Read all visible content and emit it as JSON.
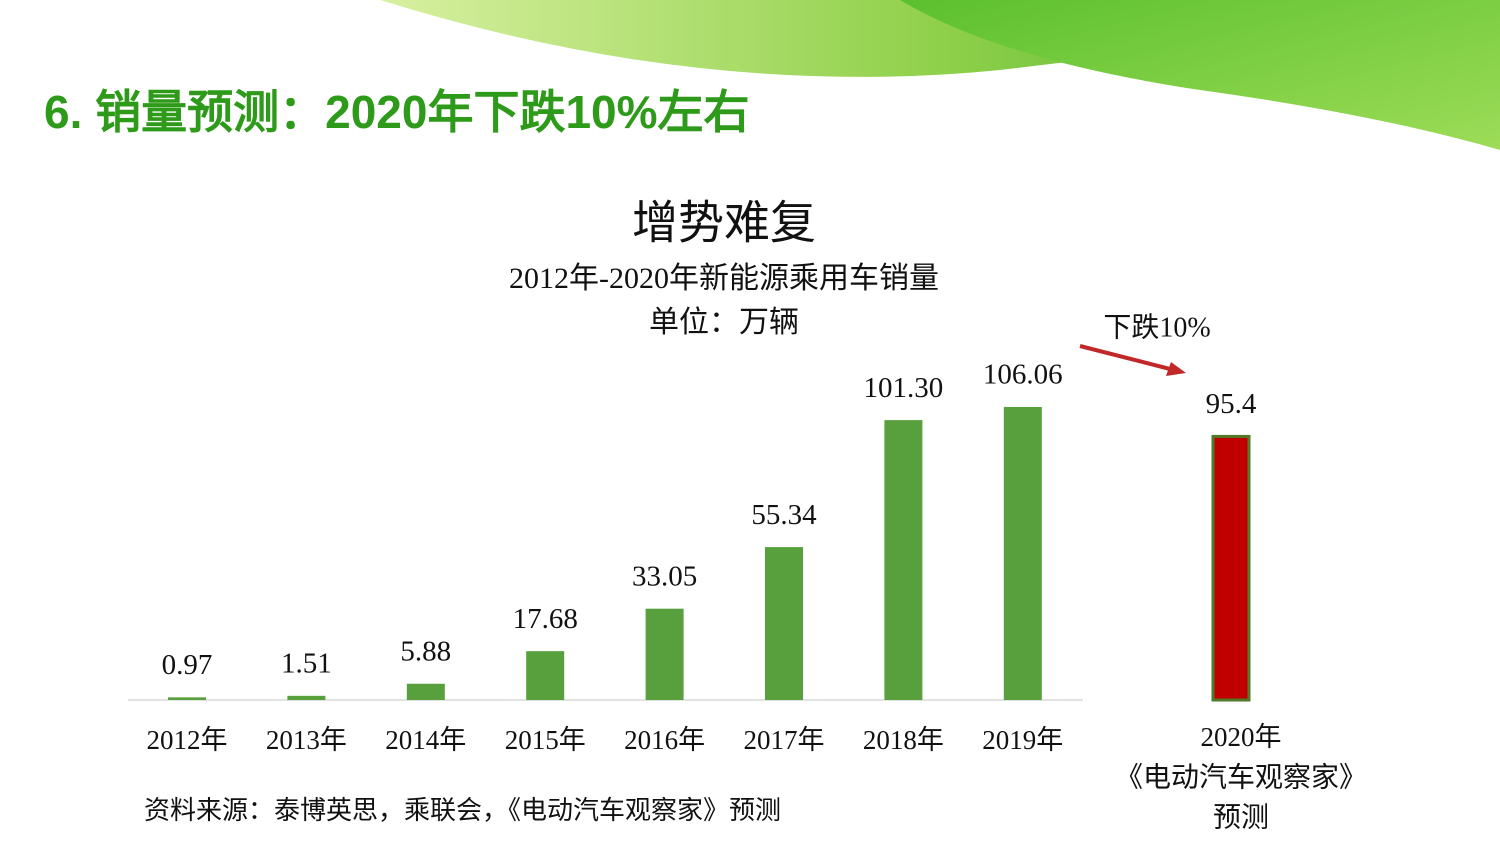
{
  "header": {
    "title": "6. 销量预测：2020年下跌10%左右"
  },
  "chart_data": {
    "type": "bar",
    "title": "增势难复",
    "subtitle": "2012年-2020年新能源乘用车销量",
    "unit": "单位：万辆",
    "categories": [
      "2012年",
      "2013年",
      "2014年",
      "2015年",
      "2016年",
      "2017年",
      "2018年",
      "2019年",
      "2020年"
    ],
    "forecast_note": [
      "《电动汽车观察家》",
      "预测"
    ],
    "values": [
      0.97,
      1.51,
      5.88,
      17.68,
      33.05,
      55.34,
      101.3,
      106.06,
      95.4
    ],
    "value_labels": [
      "0.97",
      "1.51",
      "5.88",
      "17.68",
      "33.05",
      "55.34",
      "101.30",
      "106.06",
      "95.4"
    ],
    "colors": [
      "#58a03e",
      "#58a03e",
      "#58a03e",
      "#58a03e",
      "#58a03e",
      "#58a03e",
      "#58a03e",
      "#58a03e",
      "#c00000"
    ],
    "annotation": "下跌10%"
  },
  "source": "资料来源：泰博英思，乘联会，《电动汽车观察家》预测"
}
